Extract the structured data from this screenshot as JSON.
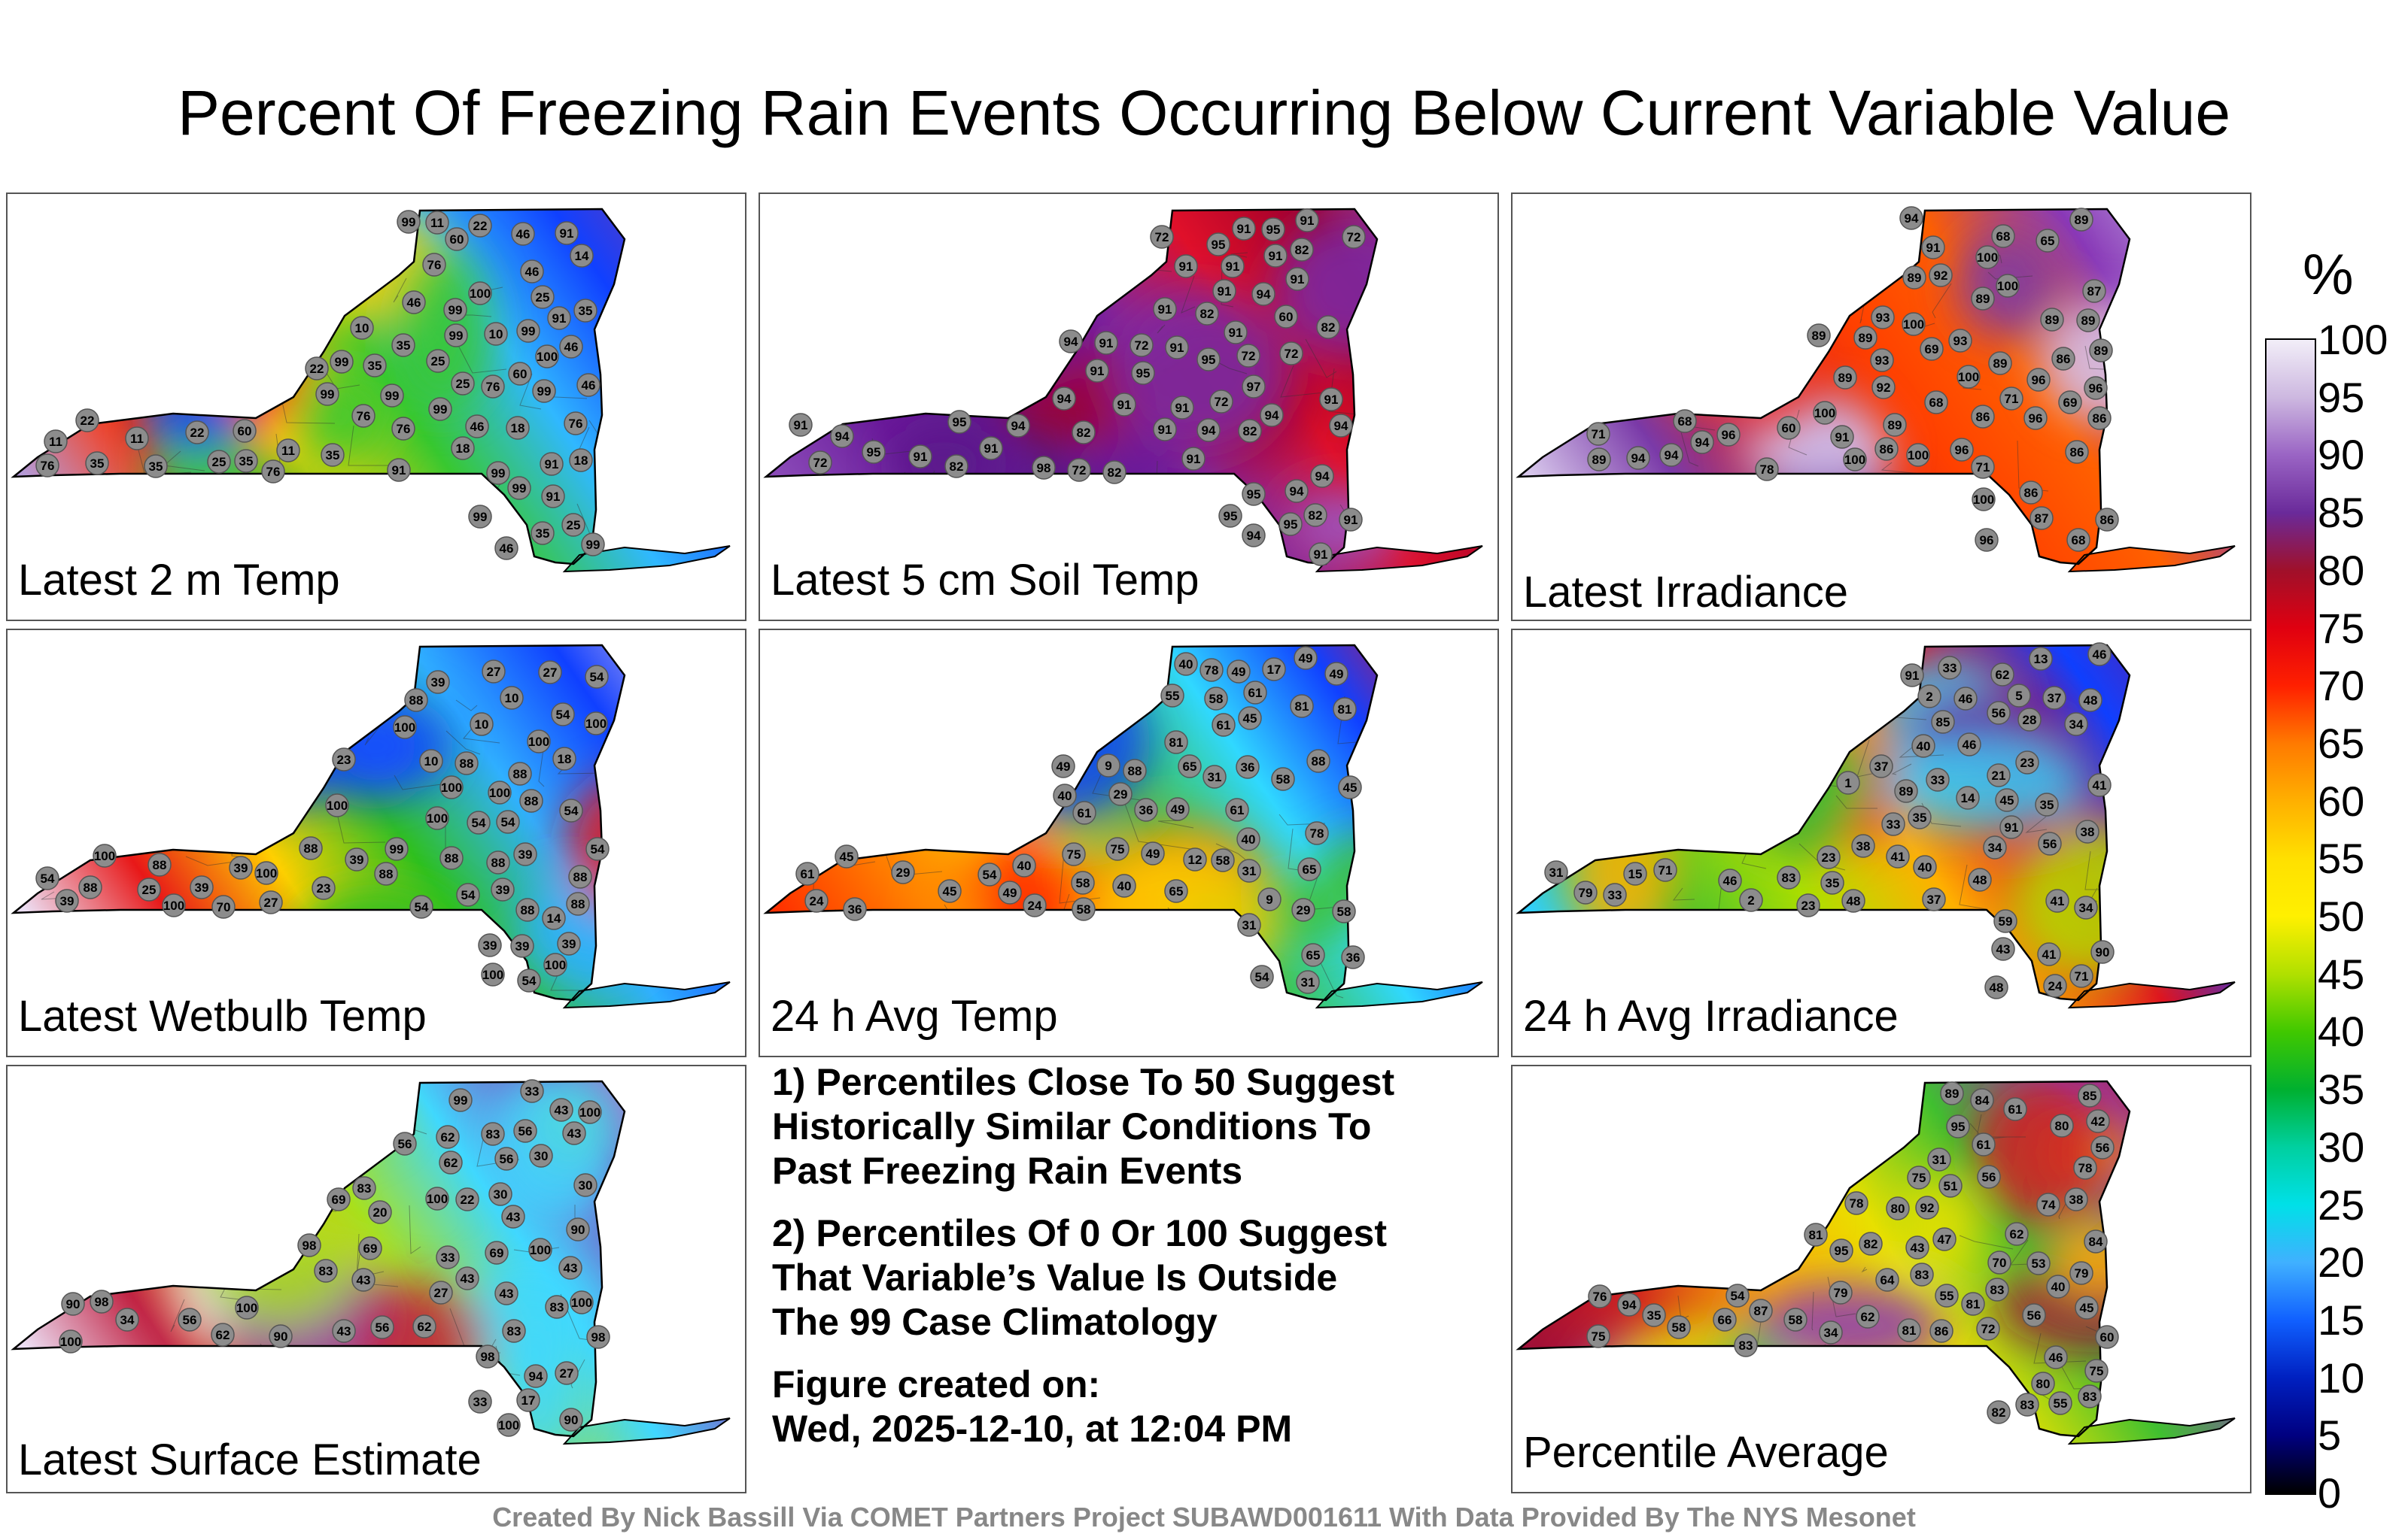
{
  "title": "Percent Of Freezing Rain Events Occurring Below Current Variable Value",
  "colorbar": {
    "unit": "%",
    "ticks": [
      "100",
      "95",
      "90",
      "85",
      "80",
      "75",
      "70",
      "65",
      "60",
      "55",
      "50",
      "45",
      "40",
      "35",
      "30",
      "25",
      "20",
      "15",
      "10",
      "5",
      "0"
    ],
    "stops": [
      "#f2eef8",
      "#cdb8e0",
      "#9a64c4",
      "#6a2a9a",
      "#a0102a",
      "#e00010",
      "#ff2000",
      "#ff7a00",
      "#ffb000",
      "#ffe000",
      "#fff000",
      "#b0e000",
      "#40c800",
      "#00b030",
      "#00d0a0",
      "#00e0e8",
      "#40b0ff",
      "#1060ff",
      "#0020c0",
      "#000080",
      "#000000"
    ]
  },
  "panels": [
    {
      "label": "Latest 2 m Temp",
      "colors": [
        "#b59ad6",
        "#ff3000",
        "#ffd000",
        "#38c830",
        "#30b8ff",
        "#1040ff",
        "#7a3aa8"
      ],
      "values": [
        "46",
        "46",
        "18",
        "60",
        "11",
        "91",
        "46",
        "18",
        "10",
        "25",
        "35",
        "99",
        "25",
        "11",
        "10",
        "22",
        "14",
        "46",
        "76",
        "25",
        "11",
        "35",
        "91",
        "99",
        "35",
        "76",
        "22",
        "18",
        "99",
        "91",
        "99",
        "60",
        "76",
        "60",
        "22",
        "11",
        "35",
        "76",
        "99",
        "100",
        "99",
        "25",
        "46",
        "99",
        "76",
        "99",
        "46",
        "91",
        "99",
        "76",
        "35",
        "25",
        "76",
        "91",
        "99",
        "99",
        "35",
        "46",
        "35",
        "35",
        "22",
        "99",
        "100",
        "99"
      ]
    },
    {
      "label": "Latest 5 cm Soil Temp",
      "colors": [
        "#8a4ab8",
        "#6a1a9a",
        "#5a1a8a",
        "#7a2aa8",
        "#e0102a",
        "#a0002a",
        "#9a5ac8"
      ],
      "values": [
        "82",
        "91",
        "94",
        "72",
        "94",
        "97",
        "82",
        "94",
        "91",
        "98",
        "82",
        "94",
        "95",
        "82",
        "60",
        "72",
        "91",
        "95",
        "94",
        "72",
        "91",
        "91",
        "95",
        "91",
        "94",
        "94",
        "91",
        "95",
        "91",
        "94",
        "82",
        "91",
        "91",
        "72",
        "82",
        "72",
        "91",
        "91",
        "94",
        "72",
        "91",
        "82",
        "95",
        "94",
        "91",
        "91",
        "95",
        "91",
        "82",
        "72",
        "91",
        "95",
        "94",
        "91",
        "91",
        "95",
        "72",
        "91",
        "91",
        "91",
        "95"
      ]
    },
    {
      "label": "Latest Irradiance",
      "colors": [
        "#d8c8ec",
        "#7a3aa8",
        "#e02020",
        "#ff4000",
        "#ff6000",
        "#8a3ab8",
        "#c0a8e0"
      ],
      "values": [
        "86",
        "94",
        "91",
        "87",
        "78",
        "69",
        "71",
        "69",
        "86",
        "89",
        "93",
        "86",
        "68",
        "60",
        "68",
        "65",
        "89",
        "86",
        "71",
        "68",
        "89",
        "94",
        "96",
        "86",
        "71",
        "68",
        "92",
        "89",
        "87",
        "100",
        "89",
        "86",
        "93",
        "89",
        "100",
        "96",
        "89",
        "89",
        "96",
        "94",
        "100",
        "89",
        "86",
        "91",
        "100",
        "96",
        "93",
        "100",
        "100",
        "96",
        "94",
        "89",
        "92",
        "89",
        "89",
        "100",
        "96",
        "100"
      ]
    },
    {
      "label": "Latest Wetbulb Temp",
      "colors": [
        "#ecdff4",
        "#e81818",
        "#ffd000",
        "#30c020",
        "#30b0ff",
        "#1040ff",
        "#d8c0ec"
      ],
      "values": [
        "54",
        "54",
        "18",
        "10",
        "39",
        "54",
        "23",
        "10",
        "27",
        "39",
        "54",
        "88",
        "10",
        "14",
        "25",
        "39",
        "88",
        "39",
        "23",
        "100",
        "100",
        "99",
        "88",
        "27",
        "39",
        "88",
        "100",
        "88",
        "54",
        "39",
        "100",
        "54",
        "54",
        "88",
        "100",
        "88",
        "70",
        "54",
        "88",
        "100",
        "88",
        "39",
        "54",
        "88",
        "39",
        "100",
        "88",
        "39",
        "27",
        "100",
        "88",
        "54",
        "100",
        "39",
        "88",
        "100",
        "100",
        "100"
      ]
    },
    {
      "label": "24 h Avg Temp",
      "colors": [
        "#ff3000",
        "#ff8000",
        "#ffd000",
        "#40c030",
        "#30d8ff",
        "#1040ff",
        "#e01030"
      ],
      "values": [
        "40",
        "31",
        "49",
        "17",
        "9",
        "31",
        "58",
        "45",
        "24",
        "29",
        "12",
        "49",
        "40",
        "31",
        "29",
        "9",
        "36",
        "49",
        "24",
        "29",
        "75",
        "75",
        "65",
        "58",
        "65",
        "40",
        "49",
        "45",
        "54",
        "78",
        "65",
        "58",
        "61",
        "36",
        "36",
        "45",
        "49",
        "61",
        "40",
        "49",
        "45",
        "61",
        "54",
        "49",
        "61",
        "40",
        "36",
        "31",
        "58",
        "55",
        "61",
        "58",
        "58",
        "65",
        "78",
        "81",
        "88",
        "81",
        "88",
        "81"
      ]
    },
    {
      "label": "24 h Avg Irradiance",
      "colors": [
        "#30d0ff",
        "#40c030",
        "#b0e000",
        "#ffb000",
        "#e01020",
        "#1040ff",
        "#6a1a9a"
      ],
      "values": [
        "40",
        "48",
        "38",
        "34",
        "40",
        "33",
        "5",
        "23",
        "37",
        "34",
        "35",
        "1",
        "2",
        "2",
        "24",
        "46",
        "33",
        "13",
        "28",
        "23",
        "37",
        "33",
        "41",
        "43",
        "46",
        "14",
        "35",
        "35",
        "38",
        "37",
        "41",
        "46",
        "33",
        "45",
        "15",
        "31",
        "46",
        "48",
        "41",
        "56",
        "59",
        "62",
        "34",
        "21",
        "23",
        "48",
        "41",
        "48",
        "56",
        "71",
        "79",
        "71",
        "83",
        "85",
        "89",
        "90",
        "91",
        "91"
      ]
    },
    {
      "label": "Latest Surface Estimate",
      "colors": [
        "#ecdff4",
        "#c02040",
        "#ffb000",
        "#a8e020",
        "#40d8ff",
        "#8a3ab8",
        "#d8c0ec"
      ],
      "values": [
        "43",
        "43",
        "30",
        "33",
        "56",
        "56",
        "27",
        "17",
        "22",
        "83",
        "56",
        "43",
        "30",
        "20",
        "27",
        "43",
        "62",
        "69",
        "43",
        "30",
        "33",
        "90",
        "100",
        "98",
        "90",
        "83",
        "62",
        "33",
        "34",
        "98",
        "100",
        "83",
        "69",
        "62",
        "43",
        "83",
        "98",
        "100",
        "90",
        "56",
        "62",
        "43",
        "69",
        "100",
        "98",
        "94",
        "99",
        "43",
        "56",
        "90",
        "83",
        "100",
        "100",
        "100"
      ]
    },
    {
      "label": "Percentile Average",
      "colors": [
        "#a01038",
        "#d02020",
        "#ffb000",
        "#e8e000",
        "#40c030",
        "#8a3ab8",
        "#c02040"
      ],
      "values": [
        "56",
        "60",
        "46",
        "53",
        "61",
        "42",
        "35",
        "79",
        "58",
        "55",
        "45",
        "34",
        "43",
        "81",
        "54",
        "40",
        "31",
        "38",
        "47",
        "78",
        "84",
        "81",
        "82",
        "78",
        "75",
        "72",
        "51",
        "83",
        "83",
        "85",
        "84",
        "83",
        "75",
        "62",
        "64",
        "80",
        "79",
        "80",
        "76",
        "61",
        "55",
        "62",
        "70",
        "83",
        "83",
        "80",
        "81",
        "74",
        "56",
        "75",
        "58",
        "56",
        "66",
        "82",
        "87",
        "89",
        "92",
        "86",
        "95",
        "94",
        "95"
      ]
    }
  ],
  "notes": [
    "1) Percentiles Close To 50 Suggest\nHistorically Similar Conditions To\nPast Freezing Rain Events",
    "2) Percentiles Of 0 Or 100 Suggest\nThat Variable’s Value Is Outside\nThe 99 Case Climatology",
    "Figure created on:\nWed, 2025-12-10, at 12:04 PM"
  ],
  "footer": "Created By Nick Bassill Via COMET Partners Project SUBAWD001611 With Data Provided By The NYS Mesonet"
}
